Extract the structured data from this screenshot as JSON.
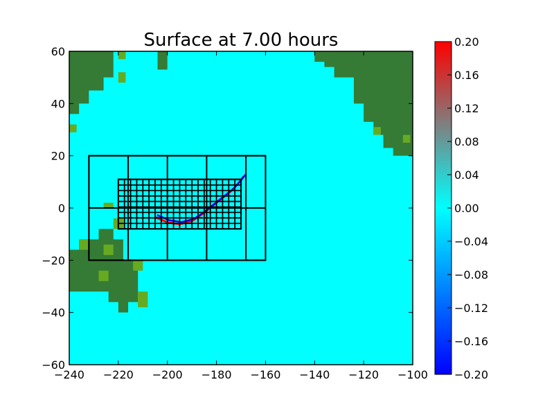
{
  "chart_data": {
    "type": "heatmap",
    "title": "Surface at 7.00 hours",
    "xlabel": "",
    "ylabel": "",
    "xlim": [
      -240,
      -100
    ],
    "ylim": [
      -60,
      60
    ],
    "xticks": [
      -240,
      -220,
      -200,
      -180,
      -160,
      -140,
      -120,
      -100
    ],
    "yticks": [
      -60,
      -40,
      -20,
      0,
      20,
      40,
      60
    ],
    "xtick_labels": [
      "−240",
      "−220",
      "−200",
      "−180",
      "−160",
      "−140",
      "−120",
      "−100"
    ],
    "ytick_labels": [
      "−60",
      "−40",
      "−20",
      "0",
      "20",
      "40",
      "60"
    ],
    "colorbar": {
      "range": [
        -0.2,
        0.2
      ],
      "ticks": [
        -0.2,
        -0.16,
        -0.12,
        -0.08,
        -0.04,
        0.0,
        0.04,
        0.08,
        0.12,
        0.16,
        0.2
      ],
      "tick_labels": [
        "−0.20",
        "−0.16",
        "−0.12",
        "−0.08",
        "−0.04",
        "0.00",
        "0.04",
        "0.08",
        "0.12",
        "0.16",
        "0.20"
      ],
      "colormap": [
        "#0000ff",
        "#00ffff",
        "#ff0000"
      ]
    },
    "colors": {
      "ocean": "#00ffff",
      "land": "#357a35",
      "coast": "#66aa22",
      "grid": "#000000"
    },
    "land_regions": [
      {
        "name": "north-america",
        "polygon": [
          [
            -140,
            60
          ],
          [
            -100,
            60
          ],
          [
            -100,
            20
          ],
          [
            -108,
            20
          ],
          [
            -108,
            23
          ],
          [
            -112,
            23
          ],
          [
            -112,
            28
          ],
          [
            -116,
            28
          ],
          [
            -116,
            33
          ],
          [
            -120,
            33
          ],
          [
            -120,
            40
          ],
          [
            -124,
            40
          ],
          [
            -124,
            50
          ],
          [
            -132,
            50
          ],
          [
            -132,
            54
          ],
          [
            -136,
            54
          ],
          [
            -136,
            56
          ],
          [
            -140,
            56
          ]
        ]
      },
      {
        "name": "asia",
        "polygon": [
          [
            -240,
            60
          ],
          [
            -222,
            60
          ],
          [
            -222,
            50
          ],
          [
            -226,
            50
          ],
          [
            -226,
            45
          ],
          [
            -232,
            45
          ],
          [
            -232,
            40
          ],
          [
            -236,
            40
          ],
          [
            -236,
            36
          ],
          [
            -240,
            36
          ]
        ]
      },
      {
        "name": "kamchatka",
        "polygon": [
          [
            -204,
            60
          ],
          [
            -200,
            60
          ],
          [
            -200,
            53
          ],
          [
            -204,
            53
          ]
        ]
      },
      {
        "name": "australia",
        "polygon": [
          [
            -240,
            -32
          ],
          [
            -212,
            -32
          ],
          [
            -212,
            -36
          ],
          [
            -216,
            -36
          ],
          [
            -216,
            -40
          ],
          [
            -220,
            -40
          ],
          [
            -220,
            -36
          ],
          [
            -224,
            -36
          ],
          [
            -224,
            -32
          ],
          [
            -240,
            -32
          ],
          [
            -240,
            -16
          ],
          [
            -236,
            -16
          ],
          [
            -236,
            -12
          ],
          [
            -228,
            -12
          ],
          [
            -228,
            -8
          ],
          [
            -222,
            -8
          ],
          [
            -222,
            -12
          ],
          [
            -218,
            -12
          ],
          [
            -218,
            -20
          ],
          [
            -212,
            -20
          ],
          [
            -212,
            -32
          ]
        ]
      }
    ],
    "coast_cells": [
      [
        -220,
        60,
        3,
        3
      ],
      [
        -220,
        52,
        3,
        4
      ],
      [
        -100,
        24,
        3,
        3
      ],
      [
        -240,
        32,
        3,
        3
      ],
      [
        -116,
        31,
        3,
        3
      ],
      [
        -104,
        28,
        3,
        3
      ],
      [
        -214,
        -20,
        4,
        4
      ],
      [
        -212,
        -32,
        4,
        4
      ],
      [
        -228,
        -24,
        4,
        4
      ],
      [
        -212,
        -34,
        4,
        4
      ],
      [
        -226,
        -14,
        4,
        4
      ],
      [
        -236,
        -12,
        4,
        4
      ],
      [
        -226,
        2,
        4,
        2
      ],
      [
        -222,
        -4,
        4,
        4
      ]
    ],
    "amr_grids": [
      {
        "level": 1,
        "extent": [
          -232,
          -160,
          -20,
          20
        ],
        "xstep": 16,
        "ystep": 20
      },
      {
        "level": 2,
        "extent": [
          -220,
          -170,
          -8,
          11
        ],
        "xstep": 2.5,
        "ystep": 2.1
      }
    ],
    "wavefront": [
      [
        -205,
        -3.5
      ],
      [
        -200,
        -5.5
      ],
      [
        -195,
        -6.2
      ],
      [
        -190,
        -5
      ],
      [
        -186,
        -2.5
      ],
      [
        -182,
        0.5
      ],
      [
        -178,
        3.5
      ],
      [
        -174,
        6.5
      ],
      [
        -171,
        9.5
      ],
      [
        -169,
        12
      ]
    ]
  }
}
